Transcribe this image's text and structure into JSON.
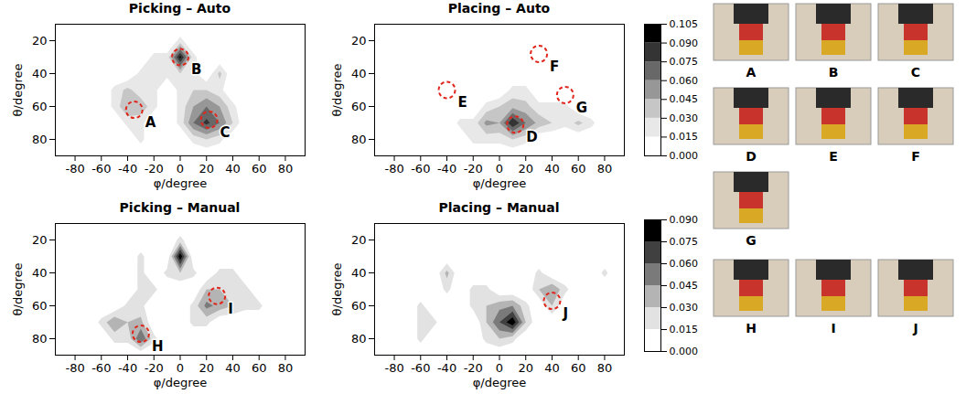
{
  "chart_data": [
    {
      "type": "contour",
      "title": "Picking – Auto",
      "x_label": "φ/degree",
      "y_label": "θ/degree",
      "xlim": [
        -95,
        95
      ],
      "ylim": [
        90,
        10
      ],
      "xticks": [
        -80,
        -60,
        -40,
        -20,
        0,
        20,
        40,
        60,
        80
      ],
      "yticks": [
        20,
        40,
        60,
        80
      ],
      "x": [
        -90,
        -80,
        -70,
        -60,
        -50,
        -40,
        -30,
        -20,
        -10,
        0,
        10,
        20,
        30,
        40,
        50,
        60,
        70,
        80,
        90
      ],
      "y": [
        10,
        20,
        30,
        40,
        50,
        60,
        70,
        80,
        90
      ],
      "cells": [
        [
          0,
          0,
          0,
          0,
          0,
          0,
          0,
          0,
          0,
          0,
          0,
          0,
          0,
          0,
          0,
          0,
          0,
          0,
          0
        ],
        [
          0,
          0,
          0,
          0,
          0,
          0,
          0,
          0,
          0,
          0.02,
          0,
          0,
          0,
          0,
          0,
          0,
          0,
          0,
          0
        ],
        [
          0,
          0,
          0,
          0,
          0,
          0,
          0,
          0.02,
          0.02,
          0.095,
          0.02,
          0,
          0,
          0,
          0,
          0,
          0,
          0,
          0
        ],
        [
          0,
          0,
          0,
          0,
          0,
          0,
          0.02,
          0.02,
          0.02,
          0.03,
          0.02,
          0,
          0.035,
          0,
          0,
          0,
          0,
          0,
          0
        ],
        [
          0,
          0,
          0,
          0,
          0.02,
          0.035,
          0.02,
          0.02,
          0,
          0.02,
          0.03,
          0.03,
          0.02,
          0,
          0,
          0,
          0,
          0,
          0
        ],
        [
          0,
          0,
          0,
          0,
          0.02,
          0.045,
          0.04,
          0.02,
          0,
          0.02,
          0.045,
          0.06,
          0.045,
          0.02,
          0,
          0,
          0,
          0,
          0
        ],
        [
          0,
          0,
          0,
          0,
          0,
          0.02,
          0.02,
          0,
          0,
          0.02,
          0.06,
          0.08,
          0.06,
          0.03,
          0,
          0,
          0,
          0,
          0
        ],
        [
          0,
          0,
          0,
          0,
          0,
          0,
          0.02,
          0,
          0,
          0,
          0.02,
          0.03,
          0.02,
          0,
          0,
          0,
          0,
          0,
          0
        ],
        [
          0,
          0,
          0,
          0,
          0,
          0,
          0,
          0,
          0,
          0,
          0,
          0,
          0,
          0,
          0,
          0,
          0,
          0,
          0
        ]
      ],
      "colorbar": {
        "range": [
          0,
          0.105
        ],
        "ticks": [
          {
            "value": 0,
            "label": "0.000"
          },
          0.015,
          {
            "value": 0.03,
            "label": "0.030"
          },
          0.045,
          {
            "value": 0.06,
            "label": "0.060"
          },
          0.075,
          {
            "value": 0.09,
            "label": "0.090"
          },
          0.105
        ]
      },
      "annotations": [
        {
          "text": "A",
          "x": -35,
          "y": 62
        },
        {
          "text": "B",
          "x": 0,
          "y": 30
        },
        {
          "text": "C",
          "x": 22,
          "y": 68
        }
      ]
    },
    {
      "type": "contour",
      "title": "Placing – Auto",
      "x_label": "φ/degree",
      "y_label": "θ/degree",
      "xlim": [
        -95,
        95
      ],
      "ylim": [
        90,
        10
      ],
      "xticks": [
        -80,
        -60,
        -40,
        -20,
        0,
        20,
        40,
        60,
        80
      ],
      "yticks": [
        20,
        40,
        60,
        80
      ],
      "x": [
        -90,
        -80,
        -70,
        -60,
        -50,
        -40,
        -30,
        -20,
        -10,
        0,
        10,
        20,
        30,
        40,
        50,
        60,
        70,
        80,
        90
      ],
      "y": [
        10,
        20,
        30,
        40,
        50,
        60,
        70,
        80,
        90
      ],
      "cells": [
        [
          0,
          0,
          0,
          0,
          0,
          0,
          0,
          0,
          0,
          0,
          0,
          0,
          0,
          0,
          0,
          0,
          0,
          0,
          0
        ],
        [
          0,
          0,
          0,
          0,
          0,
          0,
          0,
          0,
          0,
          0,
          0,
          0,
          0,
          0,
          0,
          0,
          0,
          0,
          0
        ],
        [
          0,
          0,
          0,
          0,
          0,
          0,
          0,
          0,
          0,
          0,
          0,
          0,
          0,
          0,
          0,
          0,
          0,
          0,
          0
        ],
        [
          0,
          0,
          0,
          0,
          0,
          0,
          0,
          0,
          0,
          0,
          0,
          0,
          0,
          0,
          0,
          0,
          0,
          0,
          0
        ],
        [
          0,
          0,
          0,
          0,
          0,
          0,
          0,
          0,
          0,
          0,
          0.02,
          0.02,
          0,
          0,
          0,
          0,
          0,
          0,
          0
        ],
        [
          0,
          0,
          0,
          0,
          0,
          0,
          0,
          0,
          0.02,
          0.03,
          0.04,
          0.035,
          0.02,
          0.02,
          0.02,
          0,
          0,
          0,
          0
        ],
        [
          0,
          0,
          0,
          0,
          0,
          0,
          0.02,
          0.02,
          0.05,
          0.045,
          0.09,
          0.06,
          0.04,
          0.03,
          0.02,
          0.035,
          0.02,
          0,
          0
        ],
        [
          0,
          0,
          0,
          0,
          0,
          0,
          0,
          0.02,
          0.02,
          0.02,
          0.03,
          0.02,
          0,
          0,
          0,
          0,
          0,
          0,
          0
        ],
        [
          0,
          0,
          0,
          0,
          0,
          0,
          0,
          0,
          0,
          0,
          0,
          0,
          0,
          0,
          0,
          0,
          0,
          0,
          0
        ]
      ],
      "colorbar": {
        "range": [
          0,
          0.105
        ],
        "ticks": [
          {
            "value": 0,
            "label": "0.000"
          },
          0.015,
          {
            "value": 0.03,
            "label": "0.030"
          },
          0.045,
          {
            "value": 0.06,
            "label": "0.060"
          },
          0.075,
          {
            "value": 0.09,
            "label": "0.090"
          },
          0.105
        ]
      },
      "annotations": [
        {
          "text": "D",
          "x": 12,
          "y": 71
        },
        {
          "text": "E",
          "x": -40,
          "y": 50
        },
        {
          "text": "F",
          "x": 30,
          "y": 28
        },
        {
          "text": "G",
          "x": 50,
          "y": 53
        }
      ]
    },
    {
      "type": "contour",
      "title": "Picking – Manual",
      "x_label": "φ/degree",
      "y_label": "θ/degree",
      "xlim": [
        -95,
        95
      ],
      "ylim": [
        90,
        10
      ],
      "xticks": [
        -80,
        -60,
        -40,
        -20,
        0,
        20,
        40,
        60,
        80
      ],
      "yticks": [
        20,
        40,
        60,
        80
      ],
      "x": [
        -90,
        -80,
        -70,
        -60,
        -50,
        -40,
        -30,
        -20,
        -10,
        0,
        10,
        20,
        30,
        40,
        50,
        60,
        70,
        80,
        90
      ],
      "y": [
        10,
        20,
        30,
        40,
        50,
        60,
        70,
        80,
        90
      ],
      "cells": [
        [
          0,
          0,
          0,
          0,
          0,
          0,
          0,
          0,
          0,
          0,
          0,
          0,
          0,
          0,
          0,
          0,
          0,
          0,
          0
        ],
        [
          0,
          0,
          0,
          0,
          0,
          0,
          0,
          0,
          0,
          0.02,
          0,
          0,
          0,
          0,
          0,
          0,
          0,
          0,
          0
        ],
        [
          0,
          0,
          0,
          0,
          0,
          0,
          0.02,
          0,
          0,
          0.088,
          0,
          0,
          0,
          0,
          0,
          0,
          0,
          0,
          0
        ],
        [
          0,
          0,
          0,
          0,
          0,
          0,
          0.02,
          0,
          0.02,
          0.03,
          0.02,
          0,
          0.02,
          0.02,
          0,
          0,
          0,
          0,
          0
        ],
        [
          0,
          0,
          0,
          0,
          0,
          0,
          0.02,
          0.02,
          0,
          0,
          0,
          0.03,
          0.03,
          0.02,
          0.02,
          0,
          0,
          0,
          0
        ],
        [
          0,
          0,
          0,
          0,
          0,
          0.02,
          0.02,
          0,
          0,
          0,
          0.02,
          0.05,
          0.04,
          0.03,
          0.02,
          0.02,
          0,
          0,
          0
        ],
        [
          0,
          0,
          0,
          0.02,
          0.045,
          0.03,
          0.035,
          0,
          0,
          0,
          0.02,
          0.02,
          0,
          0,
          0,
          0,
          0,
          0,
          0
        ],
        [
          0,
          0,
          0,
          0,
          0.02,
          0.02,
          0.06,
          0.02,
          0,
          0,
          0,
          0,
          0,
          0,
          0,
          0,
          0,
          0,
          0
        ],
        [
          0,
          0,
          0,
          0,
          0,
          0,
          0,
          0,
          0,
          0,
          0,
          0,
          0,
          0,
          0,
          0,
          0,
          0,
          0
        ]
      ],
      "colorbar": {
        "range": [
          0,
          0.09
        ],
        "ticks": [
          {
            "value": 0,
            "label": "0.000"
          },
          0.015,
          {
            "value": 0.03,
            "label": "0.030"
          },
          0.045,
          {
            "value": 0.06,
            "label": "0.060"
          },
          0.075,
          {
            "value": 0.09,
            "label": "0.090"
          }
        ]
      },
      "annotations": [
        {
          "text": "H",
          "x": -30,
          "y": 77
        },
        {
          "text": "I",
          "x": 28,
          "y": 54
        }
      ]
    },
    {
      "type": "contour",
      "title": "Placing – Manual",
      "x_label": "φ/degree",
      "y_label": "θ/degree",
      "xlim": [
        -95,
        95
      ],
      "ylim": [
        90,
        10
      ],
      "xticks": [
        -80,
        -60,
        -40,
        -20,
        0,
        20,
        40,
        60,
        80
      ],
      "yticks": [
        20,
        40,
        60,
        80
      ],
      "x": [
        -90,
        -80,
        -70,
        -60,
        -50,
        -40,
        -30,
        -20,
        -10,
        0,
        10,
        20,
        30,
        40,
        50,
        60,
        70,
        80,
        90
      ],
      "y": [
        10,
        20,
        30,
        40,
        50,
        60,
        70,
        80,
        90
      ],
      "cells": [
        [
          0,
          0,
          0,
          0,
          0,
          0,
          0,
          0,
          0,
          0,
          0,
          0,
          0,
          0,
          0,
          0,
          0,
          0,
          0
        ],
        [
          0,
          0,
          0,
          0,
          0,
          0,
          0,
          0,
          0,
          0,
          0,
          0,
          0,
          0,
          0,
          0,
          0,
          0,
          0
        ],
        [
          0,
          0,
          0,
          0,
          0,
          0,
          0,
          0,
          0,
          0,
          0,
          0,
          0,
          0,
          0,
          0,
          0,
          0,
          0
        ],
        [
          0,
          0,
          0,
          0,
          0,
          0.035,
          0,
          0,
          0,
          0,
          0,
          0,
          0.02,
          0,
          0,
          0,
          0,
          0.02,
          0
        ],
        [
          0,
          0,
          0,
          0,
          0,
          0.02,
          0,
          0.02,
          0.02,
          0,
          0,
          0,
          0.03,
          0.045,
          0.02,
          0,
          0,
          0,
          0
        ],
        [
          0,
          0,
          0,
          0.02,
          0,
          0,
          0,
          0.02,
          0.03,
          0.04,
          0.045,
          0.02,
          0,
          0.03,
          0,
          0,
          0,
          0,
          0
        ],
        [
          0,
          0,
          0,
          0.02,
          0.02,
          0,
          0,
          0,
          0.03,
          0.06,
          0.088,
          0.03,
          0,
          0,
          0,
          0,
          0,
          0,
          0
        ],
        [
          0,
          0,
          0,
          0.02,
          0,
          0,
          0,
          0,
          0.02,
          0.03,
          0.02,
          0,
          0,
          0,
          0,
          0,
          0,
          0,
          0
        ],
        [
          0,
          0,
          0,
          0,
          0,
          0,
          0,
          0,
          0,
          0,
          0,
          0,
          0,
          0,
          0,
          0,
          0,
          0,
          0
        ]
      ],
      "colorbar": {
        "range": [
          0,
          0.09
        ],
        "ticks": [
          {
            "value": 0,
            "label": "0.000"
          },
          0.015,
          {
            "value": 0.03,
            "label": "0.030"
          },
          0.045,
          {
            "value": 0.06,
            "label": "0.060"
          },
          0.075,
          {
            "value": 0.09,
            "label": "0.090"
          }
        ]
      },
      "annotations": [
        {
          "text": "J",
          "x": 40,
          "y": 57
        }
      ]
    }
  ],
  "photos": {
    "rows": [
      [
        "A",
        "B",
        "C"
      ],
      [
        "D",
        "E",
        "F"
      ],
      [
        "G"
      ],
      [
        "H",
        "I",
        "J"
      ]
    ]
  }
}
